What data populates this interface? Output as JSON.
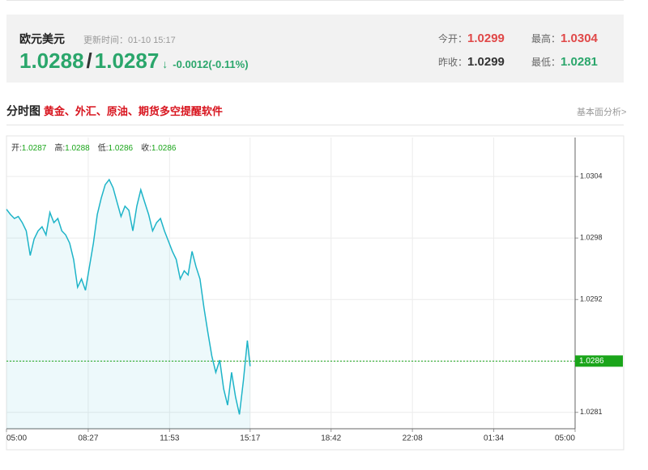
{
  "header": {
    "title": "欧元美元",
    "update_label": "更新时间：",
    "update_time": "01-10 15:17",
    "bid": "1.0288",
    "separator": "/",
    "ask": "1.0287",
    "arrow": "↓",
    "change": "-0.0012(-0.11%)",
    "open_label": "今开：",
    "open": "1.0299",
    "high_label": "最高：",
    "high": "1.0304",
    "prev_label": "昨收：",
    "prev": "1.0299",
    "low_label": "最低：",
    "low": "1.0281"
  },
  "section": {
    "title": "分时图",
    "promo": "黄金、外汇、原油、期货多空提醒软件",
    "link": "基本面分析>"
  },
  "chart_data": {
    "type": "line",
    "info": [
      {
        "label": "开:",
        "value": "1.0287"
      },
      {
        "label": "高:",
        "value": "1.0288"
      },
      {
        "label": "低:",
        "value": "1.0286"
      },
      {
        "label": "收:",
        "value": "1.0286"
      }
    ],
    "x": [
      "05:00",
      "05:10",
      "05:20",
      "05:30",
      "05:40",
      "05:50",
      "06:00",
      "06:10",
      "06:20",
      "06:30",
      "06:40",
      "06:50",
      "07:00",
      "07:10",
      "07:20",
      "07:30",
      "07:40",
      "07:50",
      "08:00",
      "08:10",
      "08:20",
      "08:30",
      "08:40",
      "08:50",
      "09:00",
      "09:10",
      "09:20",
      "09:30",
      "09:40",
      "09:50",
      "10:00",
      "10:10",
      "10:20",
      "10:30",
      "10:40",
      "10:50",
      "11:00",
      "11:10",
      "11:20",
      "11:30",
      "11:40",
      "11:50",
      "12:00",
      "12:10",
      "12:20",
      "12:30",
      "12:40",
      "12:50",
      "13:00",
      "13:10",
      "13:20",
      "13:30",
      "13:40",
      "13:50",
      "14:00",
      "14:10",
      "14:20",
      "14:30",
      "14:40",
      "14:50",
      "15:00",
      "15:10",
      "15:17"
    ],
    "series": [
      {
        "color": "#1eb4c8",
        "values": [
          1.03008,
          1.03003,
          1.02999,
          1.03001,
          1.02995,
          1.02987,
          1.02963,
          1.02979,
          1.02987,
          1.02991,
          1.02983,
          1.03005,
          1.02995,
          1.02999,
          1.02987,
          1.02983,
          1.02975,
          1.02959,
          1.02932,
          1.0294,
          1.02929,
          1.02952,
          1.02975,
          1.03003,
          1.03019,
          1.03032,
          1.03037,
          1.03029,
          1.03015,
          1.03001,
          1.03011,
          1.03007,
          1.02987,
          1.03011,
          1.03027,
          1.03015,
          1.03003,
          1.02987,
          1.02995,
          1.02999,
          1.02987,
          1.02977,
          1.02967,
          1.02959,
          1.0294,
          1.02948,
          1.02944,
          1.02967,
          1.02952,
          1.0294,
          1.02912,
          1.02888,
          1.02865,
          1.02849,
          1.02861,
          1.02833,
          1.02817,
          1.02849,
          1.02825,
          1.02808,
          1.02841,
          1.0288,
          1.02855
        ]
      }
    ],
    "xticks": [
      "05:00",
      "08:27",
      "11:53",
      "15:17",
      "18:42",
      "22:08",
      "01:34",
      "05:00"
    ],
    "ylim": [
      1.02794,
      1.03078
    ],
    "yticks": [
      1.0304,
      1.0298,
      1.0292,
      1.0286,
      1.0281
    ],
    "last_price": 1.0286,
    "last_color": "#1aa51a",
    "grid": true
  }
}
